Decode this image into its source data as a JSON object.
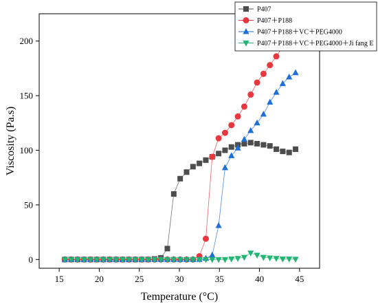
{
  "chart_data": {
    "type": "scatter",
    "title": "",
    "xlabel": "Temperature (°C)",
    "ylabel": "Viscosity (Pa.s)",
    "xlim": [
      12.5,
      47.5
    ],
    "ylim": [
      -8,
      225
    ],
    "xticks": [
      15,
      20,
      25,
      30,
      35,
      40,
      45
    ],
    "yticks": [
      0,
      50,
      100,
      150,
      200
    ],
    "grid": false,
    "legend_position": "top-right",
    "x": [
      15.7,
      16.5,
      17.3,
      18.1,
      18.9,
      19.7,
      20.5,
      21.3,
      22.1,
      22.9,
      23.7,
      24.5,
      25.3,
      26.1,
      26.9,
      27.7,
      28.5,
      29.3,
      30.1,
      30.9,
      31.7,
      32.5,
      33.3,
      34.1,
      34.9,
      35.7,
      36.5,
      37.3,
      38.1,
      38.9,
      39.7,
      40.5,
      41.3,
      42.1,
      42.9,
      43.7,
      44.5
    ],
    "series": [
      {
        "name": "P407",
        "color": "#4d4d4d",
        "marker": "square",
        "values": [
          0,
          0,
          0,
          0,
          0,
          0,
          0,
          0,
          0,
          0,
          0,
          0,
          0,
          0,
          0.5,
          1.5,
          10,
          60,
          74,
          80,
          85,
          88,
          91,
          94,
          97,
          100,
          103,
          105,
          106,
          107,
          106,
          105,
          104,
          101,
          99,
          98,
          101
        ]
      },
      {
        "name": "P407＋P188",
        "color": "#e8383d",
        "marker": "circle",
        "values": [
          0,
          0,
          0,
          0,
          0,
          0,
          0,
          0,
          0,
          0,
          0,
          0,
          0,
          0,
          0,
          0,
          0,
          0,
          0,
          0,
          0,
          3,
          19,
          94,
          111,
          116,
          123,
          131,
          140,
          151,
          162,
          170,
          178,
          186,
          195,
          202,
          208
        ]
      },
      {
        "name": "P407＋P188＋VC＋PEG4000",
        "color": "#1f6fd6",
        "marker": "triangle-up",
        "values": [
          0,
          0,
          0,
          0,
          0,
          0,
          0,
          0,
          0,
          0,
          0,
          0,
          0,
          0,
          0,
          0,
          0,
          0,
          0,
          0,
          0,
          0,
          1,
          4,
          31,
          84,
          95,
          102,
          110,
          118,
          125,
          133,
          144,
          153,
          161,
          167,
          171
        ]
      },
      {
        "name": "P407＋P188＋VC＋PEG4000＋Ji fang E",
        "color": "#22b573",
        "marker": "triangle-down",
        "values": [
          0,
          0,
          0,
          0,
          0,
          0,
          0,
          0,
          0,
          0,
          0,
          0,
          0,
          0,
          0,
          0,
          0,
          0,
          0,
          0,
          0,
          0,
          0,
          0,
          0,
          0,
          0.5,
          1,
          2,
          6,
          4,
          2,
          1.5,
          1,
          0.5,
          0.5,
          0.3
        ]
      }
    ]
  }
}
